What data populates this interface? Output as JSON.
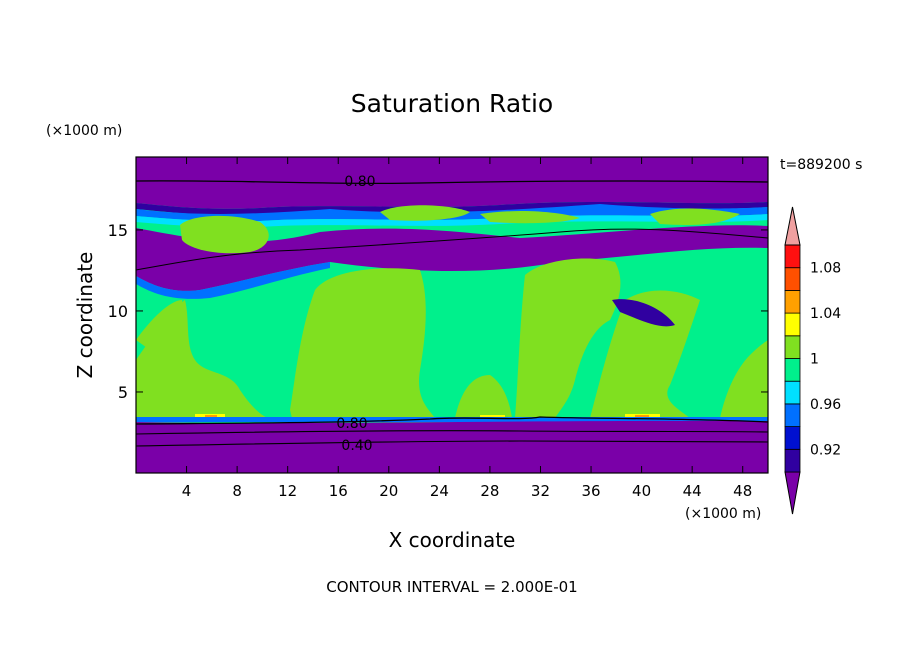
{
  "chart_data": {
    "type": "heatmap",
    "title": "Saturation Ratio",
    "xlabel": "X coordinate",
    "ylabel": "Z coordinate",
    "x_unit": "(×1000 m)",
    "y_unit": "(×1000 m)",
    "time_label": "t=889200 s",
    "footer": "CONTOUR INTERVAL = 2.000E-01",
    "xlim": [
      0,
      50
    ],
    "ylim": [
      0,
      19.5
    ],
    "x_ticks": [
      "4",
      "8",
      "12",
      "16",
      "20",
      "24",
      "28",
      "32",
      "36",
      "40",
      "44",
      "48"
    ],
    "y_ticks": [
      "5",
      "10",
      "15"
    ],
    "contour_labels": [
      "0.80",
      "0.80",
      "0.40"
    ],
    "colorbar": {
      "levels": [
        0.9,
        0.92,
        0.94,
        0.96,
        0.98,
        1.0,
        1.02,
        1.04,
        1.06,
        1.08,
        1.1
      ],
      "colors": [
        "#7a00a8",
        "#3000a0",
        "#0010d0",
        "#0070ff",
        "#00e0ff",
        "#00f08c",
        "#80e020",
        "#ffff00",
        "#ffa000",
        "#ff5000",
        "#ff1010",
        "#f0a0a0"
      ],
      "tick_labels": [
        "0.92",
        "0.96",
        "1",
        "1.04",
        "1.08"
      ]
    }
  }
}
